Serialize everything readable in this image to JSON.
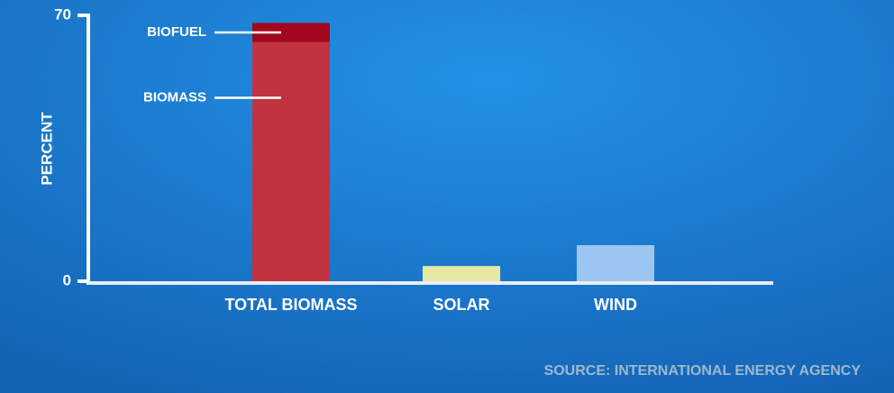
{
  "chart_data": {
    "type": "bar",
    "stacked": true,
    "categories": [
      "TOTAL BIOMASS",
      "SOLAR",
      "WIND"
    ],
    "series": [
      {
        "name": "BIOMASS",
        "color": "#c0333f",
        "values": [
          63,
          null,
          null
        ]
      },
      {
        "name": "BIOFUEL",
        "color": "#a3071f",
        "values": [
          5,
          null,
          null
        ]
      },
      {
        "color": "#e8e8a2",
        "values": [
          null,
          4,
          null
        ]
      },
      {
        "color": "#9cc6f0",
        "values": [
          null,
          null,
          9.5
        ]
      }
    ],
    "y_label": "PERCENT",
    "ylim": [
      0,
      70
    ],
    "yticks": [
      0,
      70
    ],
    "source": "SOURCE: INTERNATIONAL ENERGY AGENCY"
  }
}
